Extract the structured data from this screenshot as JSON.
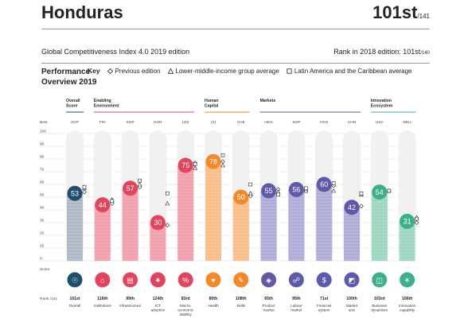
{
  "header": {
    "country": "Honduras",
    "rank": "101st",
    "rank_of": "/141",
    "edition": "Global Competitiveness Index 4.0 2019 edition",
    "rank_2018_label": "Rank in 2018 edition: 101st",
    "rank_2018_of": "/140"
  },
  "key": {
    "title_line1": "Performance",
    "title_line2": "Overview 2019",
    "key_label": "Key",
    "items": [
      "Previous edition",
      "Lower-middle-income group average",
      "Latin America and the Caribbean average"
    ]
  },
  "labels": {
    "best": "Best",
    "score": "Score",
    "rank": "Rank /141",
    "ticks": [
      "0",
      "10",
      "20",
      "30",
      "40",
      "50",
      "60",
      "70",
      "80",
      "90",
      "100"
    ]
  },
  "groups": [
    {
      "lines": [
        "Overall",
        "Score"
      ],
      "start": 0,
      "end": 0
    },
    {
      "lines": [
        "Enabling",
        "Environment"
      ],
      "start": 1,
      "end": 4
    },
    {
      "lines": [
        "Human",
        "Capital"
      ],
      "start": 5,
      "end": 6
    },
    {
      "lines": [
        "Markets"
      ],
      "start": 7,
      "end": 10
    },
    {
      "lines": [
        "Innovation",
        "Ecosystem"
      ],
      "start": 11,
      "end": 12
    }
  ],
  "colors": {
    "overall": "#1f4d6e",
    "enabling": "#e0455e",
    "human": "#f2892b",
    "markets": "#5e5aa8",
    "innovation": "#3fae8a"
  },
  "chart_data": {
    "type": "bar",
    "ylim": [
      0,
      100
    ],
    "categories": [
      {
        "name": "Overall",
        "lines": [
          "Overall"
        ],
        "best": "SGP",
        "rank": "101st",
        "value": 53,
        "prev": 54,
        "lmi": 57,
        "lac": 58,
        "color": "overall",
        "light": "#b9c2cc",
        "icon": "medal-icon",
        "glyph": "☉"
      },
      {
        "name": "Institutions",
        "lines": [
          "Institutions"
        ],
        "best": "FIN",
        "rank": "116th",
        "value": 44,
        "prev": 45,
        "lmi": 48,
        "lac": 47,
        "color": "enabling",
        "light": "#f2a9b5",
        "icon": "institution-icon",
        "glyph": "⌂"
      },
      {
        "name": "Infrastructure",
        "lines": [
          "Infrastructure"
        ],
        "best": "SGP",
        "rank": "99th",
        "value": 57,
        "prev": 58,
        "lmi": 60,
        "lac": 63,
        "color": "enabling",
        "light": "#f2a9b5",
        "icon": "infrastructure-icon",
        "glyph": "▤"
      },
      {
        "name": "ICT adoption",
        "lines": [
          "ICT",
          "adoption"
        ],
        "best": "KOR",
        "rank": "124th",
        "value": 30,
        "prev": 28,
        "lmi": 45,
        "lac": 53,
        "color": "enabling",
        "light": "#f2a9b5",
        "icon": "ict-icon",
        "glyph": "✷"
      },
      {
        "name": "Macroeconomic stability",
        "lines": [
          "Macro-",
          "economic",
          "stability"
        ],
        "best": "(33)",
        "rank": "83rd",
        "value": 75,
        "prev": 77,
        "lmi": 73,
        "lac": 76,
        "color": "enabling",
        "light": "#f2a9b5",
        "icon": "macro-icon",
        "glyph": "%"
      },
      {
        "name": "Health",
        "lines": [
          "Health"
        ],
        "best": "(4)",
        "rank": "80th",
        "value": 78,
        "prev": 78,
        "lmi": 75,
        "lac": 83,
        "color": "human",
        "light": "#f9c393",
        "icon": "health-icon",
        "glyph": "♥"
      },
      {
        "name": "Skills",
        "lines": [
          "Skills"
        ],
        "best": "CHE",
        "rank": "108th",
        "value": 50,
        "prev": 51,
        "lmi": 53,
        "lac": 60,
        "color": "human",
        "light": "#f9c393",
        "icon": "skills-icon",
        "glyph": "✎"
      },
      {
        "name": "Product market",
        "lines": [
          "Product",
          "market"
        ],
        "best": "HKG",
        "rank": "65th",
        "value": 55,
        "prev": 56,
        "lmi": 54,
        "lac": 52,
        "color": "markets",
        "light": "#b7b5dc",
        "icon": "product-market-icon",
        "glyph": "◈"
      },
      {
        "name": "Labour market",
        "lines": [
          "Labour",
          "market"
        ],
        "best": "SGP",
        "rank": "95th",
        "value": 56,
        "prev": 55,
        "lmi": 55,
        "lac": 57,
        "color": "markets",
        "light": "#b7b5dc",
        "icon": "labour-market-icon",
        "glyph": "☍"
      },
      {
        "name": "Financial system",
        "lines": [
          "Financial",
          "system"
        ],
        "best": "HKG",
        "rank": "71st",
        "value": 60,
        "prev": 59,
        "lmi": 55,
        "lac": 61,
        "color": "markets",
        "light": "#b7b5dc",
        "icon": "financial-system-icon",
        "glyph": "$"
      },
      {
        "name": "Market size",
        "lines": [
          "Market",
          "size"
        ],
        "best": "CHN",
        "rank": "100th",
        "value": 42,
        "prev": 43,
        "lmi": 52,
        "lac": 53,
        "color": "markets",
        "light": "#b7b5dc",
        "icon": "market-size-icon",
        "glyph": "◩"
      },
      {
        "name": "Business dynamism",
        "lines": [
          "Business",
          "dynamism"
        ],
        "best": "USA",
        "rank": "103rd",
        "value": 54,
        "prev": 55,
        "lmi": 55,
        "lac": 55,
        "color": "innovation",
        "light": "#a8dcc7",
        "icon": "business-dynamism-icon",
        "glyph": "◫"
      },
      {
        "name": "Innovation capability",
        "lines": [
          "Innovation",
          "capability"
        ],
        "best": "DEU",
        "rank": "106th",
        "value": 31,
        "prev": 30,
        "lmi": 34,
        "lac": 33,
        "color": "innovation",
        "light": "#a8dcc7",
        "icon": "innovation-capability-icon",
        "glyph": "☀"
      }
    ]
  }
}
